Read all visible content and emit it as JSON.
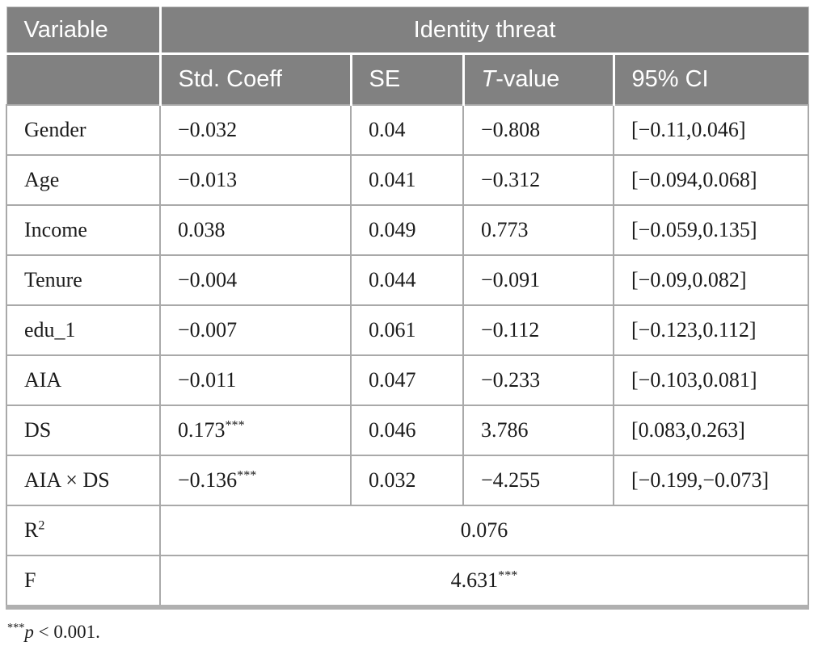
{
  "colors": {
    "header_bg": "#818181",
    "header_text": "#ffffff",
    "body_border": "#a9a9a9",
    "bottom_border": "#b0b0b0",
    "body_text": "#1b1b1b"
  },
  "header": {
    "variable_label": "Variable",
    "group_label": "Identity threat",
    "sub": {
      "std_coeff": "Std. Coeff",
      "se": "SE",
      "t_italic": "T",
      "t_rest": "-value",
      "ci": "95% CI"
    }
  },
  "rows": [
    {
      "variable": "Gender",
      "coeff": "−0.032",
      "coeff_sup": "",
      "se": "0.04",
      "t": "−0.808",
      "ci": "[−0.11,0.046]"
    },
    {
      "variable": "Age",
      "coeff": "−0.013",
      "coeff_sup": "",
      "se": "0.041",
      "t": "−0.312",
      "ci": "[−0.094,0.068]"
    },
    {
      "variable": "Income",
      "coeff": "0.038",
      "coeff_sup": "",
      "se": "0.049",
      "t": "0.773",
      "ci": "[−0.059,0.135]"
    },
    {
      "variable": "Tenure",
      "coeff": "−0.004",
      "coeff_sup": "",
      "se": "0.044",
      "t": "−0.091",
      "ci": "[−0.09,0.082]"
    },
    {
      "variable": "edu_1",
      "coeff": "−0.007",
      "coeff_sup": "",
      "se": "0.061",
      "t": "−0.112",
      "ci": "[−0.123,0.112]"
    },
    {
      "variable": "AIA",
      "coeff": "−0.011",
      "coeff_sup": "",
      "se": "0.047",
      "t": "−0.233",
      "ci": "[−0.103,0.081]"
    },
    {
      "variable": "DS",
      "coeff": "0.173",
      "coeff_sup": "***",
      "se": "0.046",
      "t": "3.786",
      "ci": "[0.083,0.263]"
    },
    {
      "variable": "AIA × DS",
      "coeff": "−0.136",
      "coeff_sup": "***",
      "se": "0.032",
      "t": "−4.255",
      "ci": "[−0.199,−0.073]"
    }
  ],
  "summary": [
    {
      "label": "R",
      "label_sup": "2",
      "value": "0.076",
      "value_sup": ""
    },
    {
      "label": "F",
      "label_sup": "",
      "value": "4.631",
      "value_sup": "***"
    }
  ],
  "footnote": {
    "sup": "***",
    "p": "p",
    "rest": " < 0.001."
  }
}
